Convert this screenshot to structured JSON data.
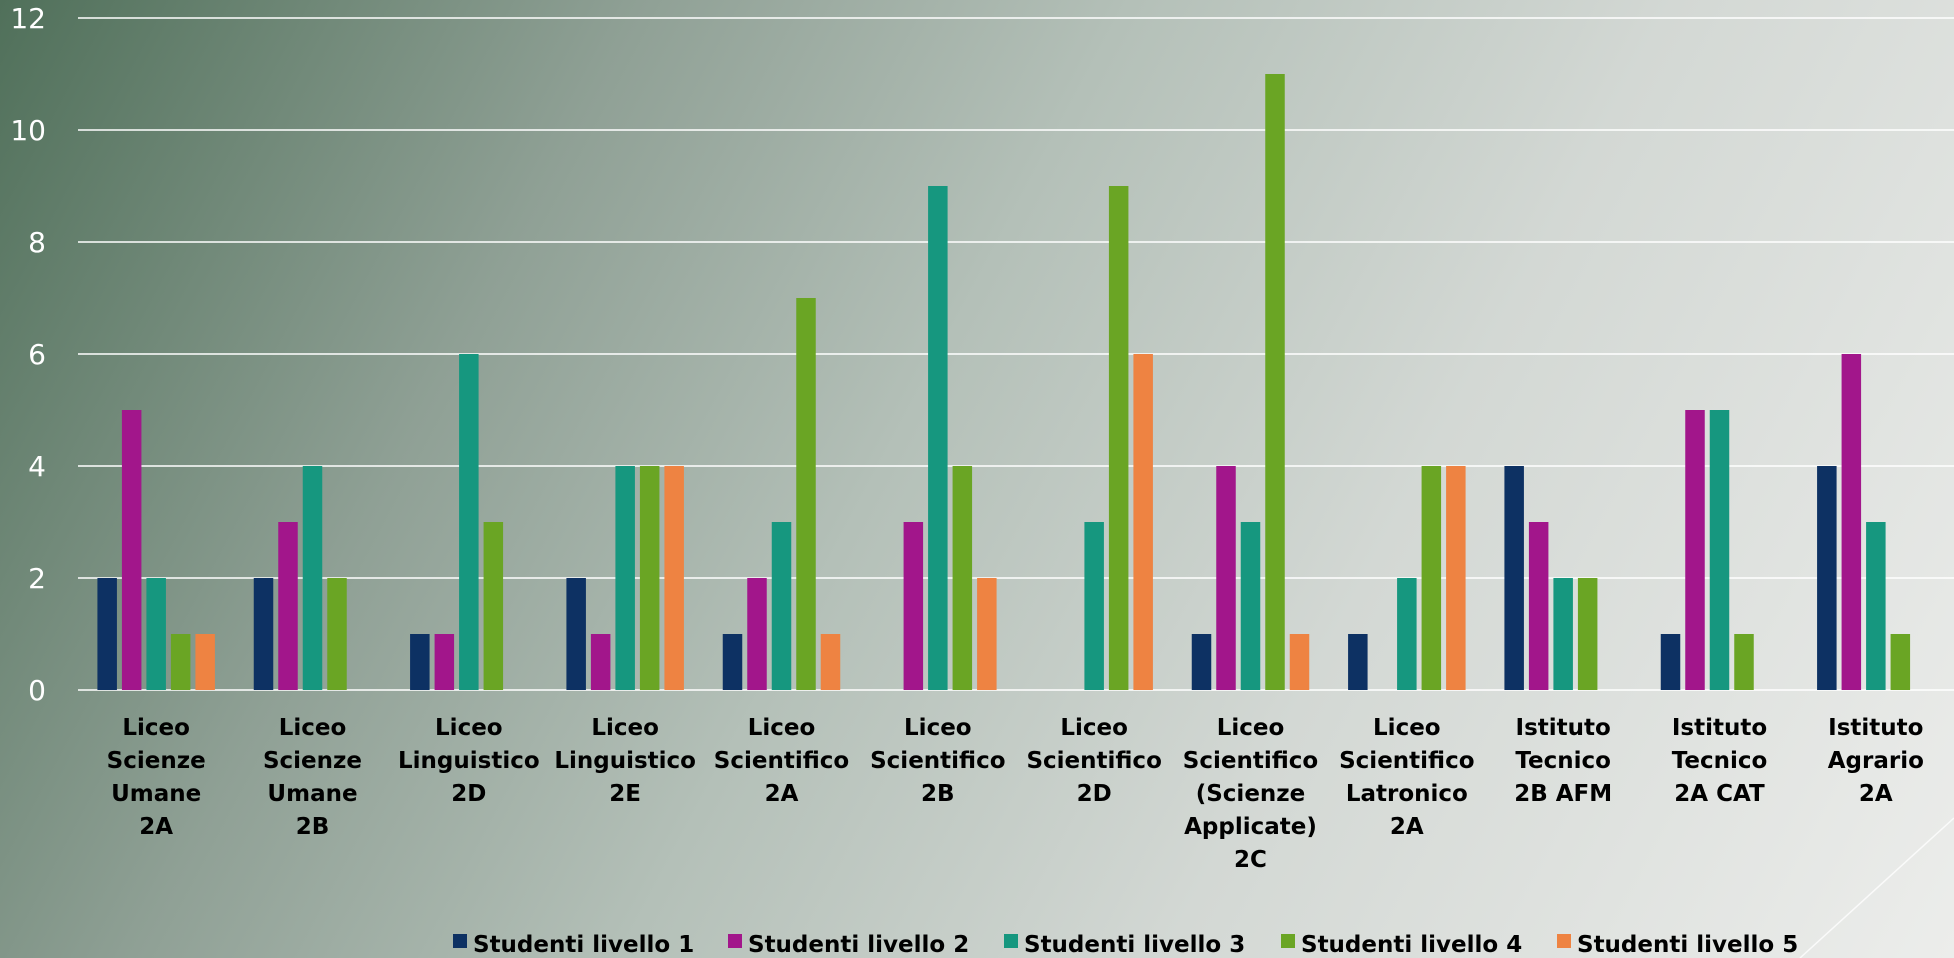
{
  "chart_data": {
    "type": "bar",
    "title": "",
    "xlabel": "",
    "ylabel": "",
    "ylim": [
      0,
      12
    ],
    "yticks": [
      0,
      2,
      4,
      6,
      8,
      10,
      12
    ],
    "grid": true,
    "legend_position": "bottom",
    "categories": [
      [
        "Liceo",
        "Scienze",
        "Umane",
        "2A"
      ],
      [
        "Liceo",
        "Scienze",
        "Umane",
        "2B"
      ],
      [
        "Liceo",
        "Linguistico",
        "2D"
      ],
      [
        "Liceo",
        "Linguistico",
        "2E"
      ],
      [
        "Liceo",
        "Scientifico",
        "2A"
      ],
      [
        "Liceo",
        "Scientifico",
        "2B"
      ],
      [
        "Liceo",
        "Scientifico",
        "2D"
      ],
      [
        "Liceo",
        "Scientifico",
        "(Scienze",
        "Applicate)",
        "2C"
      ],
      [
        "Liceo",
        "Scientifico",
        "Latronico",
        "2A"
      ],
      [
        "Istituto",
        "Tecnico",
        "2B AFM"
      ],
      [
        "Istituto",
        "Tecnico",
        "2A CAT"
      ],
      [
        "Istituto",
        "Agrario",
        "2A"
      ]
    ],
    "series": [
      {
        "name": "Studenti livello 1",
        "color": "#0d3163",
        "values": [
          2,
          2,
          1,
          2,
          1,
          0,
          0,
          1,
          1,
          4,
          1,
          4
        ]
      },
      {
        "name": "Studenti livello 2",
        "color": "#a2168b",
        "values": [
          5,
          3,
          1,
          1,
          2,
          3,
          0,
          4,
          0,
          3,
          5,
          6
        ]
      },
      {
        "name": "Studenti livello 3",
        "color": "#16977f",
        "values": [
          2,
          4,
          6,
          4,
          3,
          9,
          3,
          3,
          2,
          2,
          5,
          3
        ]
      },
      {
        "name": "Studenti livello 4",
        "color": "#6aa524",
        "values": [
          1,
          2,
          3,
          4,
          7,
          4,
          9,
          11,
          4,
          2,
          1,
          1
        ]
      },
      {
        "name": "Studenti livello 5",
        "color": "#ee8342",
        "values": [
          1,
          0,
          0,
          4,
          1,
          2,
          6,
          1,
          4,
          0,
          0,
          0
        ]
      }
    ]
  }
}
